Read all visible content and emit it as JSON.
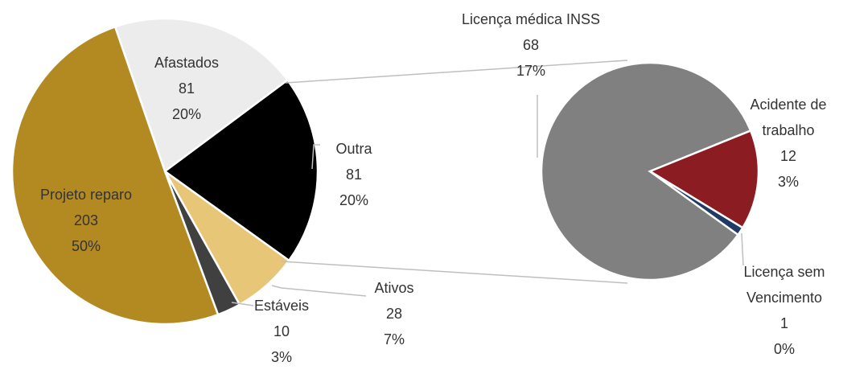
{
  "chart_data": [
    {
      "type": "pie",
      "categories": [
        "Afastados",
        "Outra",
        "Ativos",
        "Estáveis",
        "Projeto reparo"
      ],
      "values": [
        81,
        81,
        28,
        10,
        203
      ],
      "percents": [
        20,
        20,
        7,
        3,
        50
      ],
      "percent_labels": [
        "20%",
        "20%",
        "7%",
        "3%",
        "50%"
      ],
      "colors": [
        "#ececec",
        "#000000",
        "#e8c678",
        "#404040",
        "#b38a22"
      ]
    },
    {
      "type": "pie",
      "categories": [
        "Licença médica INSS",
        "Acidente de trabalho",
        "Licença sem Vencimento"
      ],
      "values": [
        68,
        12,
        1
      ],
      "percents": [
        17,
        3,
        0
      ],
      "percent_labels": [
        "17%",
        "3%",
        "0%"
      ],
      "colors": [
        "#808080",
        "#8b1c22",
        "#1f3a64"
      ]
    }
  ]
}
